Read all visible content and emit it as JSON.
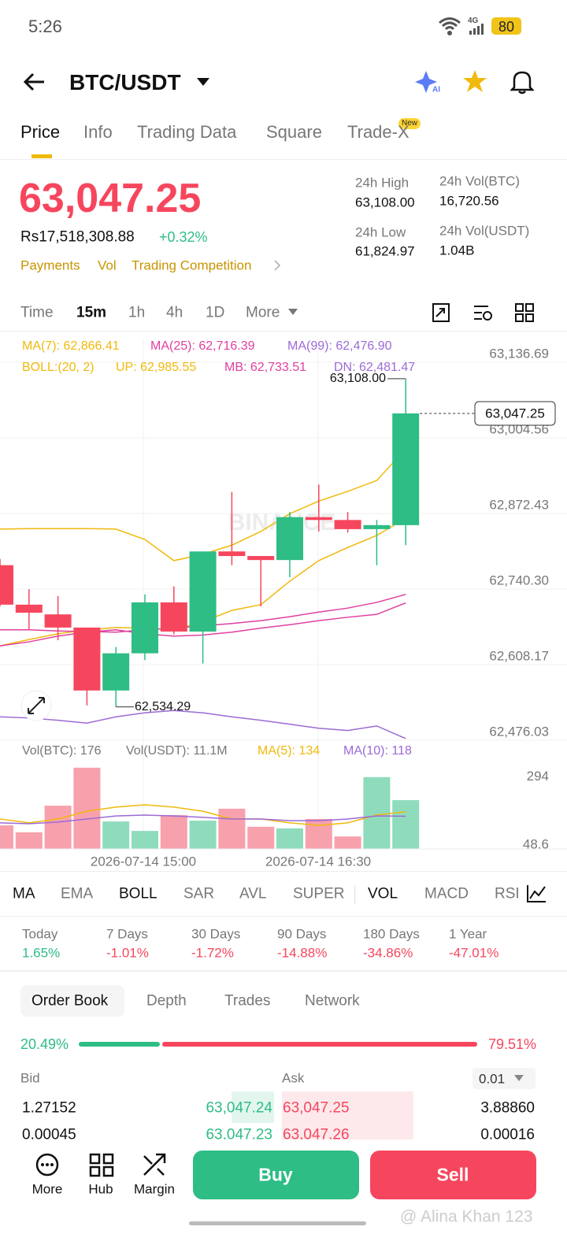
{
  "status_bar": {
    "time": "5:26",
    "network": "4G",
    "battery": "80"
  },
  "header": {
    "pair": "BTC/USDT"
  },
  "tabs": {
    "items": [
      "Price",
      "Info",
      "Trading Data",
      "Square",
      "Trade-X"
    ],
    "badge": "New"
  },
  "ticker": {
    "price": "63,047.25",
    "fiat": "Rs17,518,308.88",
    "change": "+0.32%",
    "links": [
      "Payments",
      "Vol",
      "Trading Competition"
    ],
    "stats": [
      {
        "label": "24h High",
        "value": "63,108.00"
      },
      {
        "label": "24h Vol(BTC)",
        "value": "16,720.56"
      },
      {
        "label": "24h Low",
        "value": "61,824.97"
      },
      {
        "label": "24h Vol(USDT)",
        "value": "1.04B"
      }
    ]
  },
  "intervals": [
    "Time",
    "15m",
    "1h",
    "4h",
    "1D",
    "More"
  ],
  "indicators": {
    "ma": [
      "MA(7): 62,866.41",
      "MA(25): 62,716.39",
      "MA(99): 62,476.90"
    ],
    "boll": [
      "BOLL:(20, 2)",
      "UP: 62,985.55",
      "MB: 62,733.51",
      "DN: 62,481.47"
    ]
  },
  "chart": {
    "type": "candlestick",
    "watermark": "BINANCE",
    "ylim": [
      62476.03,
      63136.69
    ],
    "yticks": [
      {
        "value": 63136.69,
        "label": "63,136.69"
      },
      {
        "value": 63004.56,
        "label": "63,004.56"
      },
      {
        "value": 62872.43,
        "label": "62,872.43"
      },
      {
        "value": 62740.3,
        "label": "62,740.30"
      },
      {
        "value": 62608.17,
        "label": "62,608.17"
      },
      {
        "value": 62476.03,
        "label": "62,476.03"
      }
    ],
    "last": {
      "value": 63047.25,
      "label": "63,047.25"
    },
    "high": {
      "value": 63108.0,
      "label": "63,108.00"
    },
    "low": {
      "value": 62534.29,
      "label": "62,534.29"
    },
    "x_labels": [
      "2026-07-14 15:00",
      "2026-07-14 16:30"
    ],
    "candles": [
      {
        "open": 62782,
        "high": 62793,
        "low": 62710,
        "close": 62713
      },
      {
        "open": 62713,
        "high": 62740,
        "low": 62669,
        "close": 62699
      },
      {
        "open": 62696,
        "high": 62728,
        "low": 62651,
        "close": 62673
      },
      {
        "open": 62673,
        "high": 62673,
        "low": 62537,
        "close": 62563
      },
      {
        "open": 62563,
        "high": 62639,
        "low": 62534.29,
        "close": 62628
      },
      {
        "open": 62628,
        "high": 62731,
        "low": 62616,
        "close": 62717
      },
      {
        "open": 62717,
        "high": 62745,
        "low": 62661,
        "close": 62666
      },
      {
        "open": 62666,
        "high": 62806,
        "low": 62610,
        "close": 62806
      },
      {
        "open": 62806,
        "high": 62910,
        "low": 62782,
        "close": 62798
      },
      {
        "open": 62798,
        "high": 62798,
        "low": 62710,
        "close": 62791
      },
      {
        "open": 62791,
        "high": 62875,
        "low": 62761,
        "close": 62866
      },
      {
        "open": 62866,
        "high": 62923,
        "low": 62841,
        "close": 62861
      },
      {
        "open": 62861,
        "high": 62875,
        "low": 62839,
        "close": 62845
      },
      {
        "open": 62845,
        "high": 62861,
        "low": 62782,
        "close": 62852
      },
      {
        "open": 62852,
        "high": 63108,
        "low": 62817,
        "close": 63047.25
      }
    ],
    "up_color": "#2ebd85",
    "down_color": "#f6465d",
    "lines": [
      {
        "color": "#f0b90b",
        "values": [
          62845,
          62846,
          62846,
          62846,
          62845,
          62827,
          62790,
          62801,
          62817,
          62841,
          62872,
          62894,
          62911,
          62930,
          62985
        ]
      },
      {
        "color": "#f0b90b",
        "values": [
          62641,
          62652,
          62662,
          62669,
          62673,
          62672,
          62669,
          62683,
          62703,
          62713,
          62754,
          62790,
          62813,
          62834,
          62864
        ]
      },
      {
        "color": "#e040a0",
        "values": [
          62669,
          62669,
          62667,
          62666,
          62665,
          62669,
          62672,
          62676,
          62680,
          62685,
          62692,
          62700,
          62707,
          62717,
          62731
        ]
      },
      {
        "color": "#e040a0",
        "values": [
          62641,
          62648,
          62658,
          62665,
          62669,
          62662,
          62658,
          62660,
          62665,
          62672,
          62678,
          62685,
          62691,
          62696,
          62716
        ]
      },
      {
        "color": "#9c6ad6",
        "values": [
          62517,
          62515,
          62511,
          62506,
          62517,
          62524,
          62528,
          62524,
          62517,
          62511,
          62504,
          62497,
          62493,
          62501,
          62479
        ]
      }
    ]
  },
  "volume": {
    "labels": [
      "Vol(BTC): 176",
      "Vol(USDT): 11.1M",
      "MA(5): 134",
      "MA(10): 118"
    ],
    "ylim": [
      0,
      294
    ],
    "yticks": [
      294,
      48.6
    ],
    "values": [
      85,
      60,
      156,
      293,
      99,
      65,
      122,
      102,
      145,
      80,
      74,
      108,
      45,
      259,
      176
    ],
    "up_color": "#8fdcbd",
    "down_color": "#f7a1ad",
    "lines": [
      {
        "color": "#f0b90b",
        "values": [
          108,
          94,
          108,
          136,
          151,
          159,
          151,
          136,
          108,
          108,
          94,
          85,
          94,
          122,
          134
        ]
      },
      {
        "color": "#9c6ad6",
        "values": [
          94,
          91,
          97,
          108,
          119,
          122,
          119,
          114,
          108,
          108,
          102,
          102,
          108,
          119,
          118
        ]
      }
    ]
  },
  "chart_tabs": [
    "MA",
    "EMA",
    "BOLL",
    "SAR",
    "AVL",
    "SUPER",
    "VOL",
    "MACD",
    "RSI"
  ],
  "performance": [
    {
      "period": "Today",
      "change": "1.65%"
    },
    {
      "period": "7 Days",
      "change": "-1.01%"
    },
    {
      "period": "30 Days",
      "change": "-1.72%"
    },
    {
      "period": "90 Days",
      "change": "-14.88%"
    },
    {
      "period": "180 Days",
      "change": "-34.86%"
    },
    {
      "period": "1 Year",
      "change": "-47.01%"
    }
  ],
  "order_book": {
    "tabs": [
      "Order Book",
      "Depth",
      "Trades",
      "Network"
    ],
    "bid_ratio": {
      "value": 20.49,
      "label": "20.49%"
    },
    "ask_ratio": {
      "value": 79.51,
      "label": "79.51%"
    },
    "bid_header": "Bid",
    "ask_header": "Ask",
    "precision": "0.01",
    "rows": [
      [
        "1.27152",
        "63,047.24",
        "63,047.25",
        "3.88860"
      ],
      [
        "0.00045",
        "63,047.23",
        "63,047.26",
        "0.00016"
      ]
    ]
  },
  "bottom_bar": {
    "items": [
      "More",
      "Hub",
      "Margin"
    ],
    "buy": "Buy",
    "sell": "Sell"
  },
  "watermark": "@ Alina Khan 123"
}
